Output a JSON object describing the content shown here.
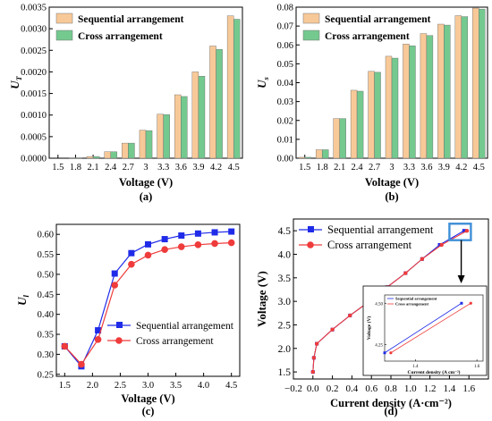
{
  "colors": {
    "sequential_bar": "#F8C998",
    "cross_bar": "#74C98F",
    "sequential_line": "#1F2BE8",
    "cross_line": "#EF3B3B",
    "zoom_box": "#3F8FD8",
    "axis": "#000000"
  },
  "chart_data": [
    {
      "panel": "(a)",
      "type": "bar",
      "ylabel": "U",
      "ylabel_sub": "T",
      "xlabel": "Voltage (V)",
      "categories": [
        "1.5",
        "1.8",
        "2.1",
        "2.4",
        "2.7",
        "3",
        "3.3",
        "3.6",
        "3.9",
        "4.2",
        "4.5"
      ],
      "ylim": [
        0,
        0.0035
      ],
      "yticks": [
        0.0,
        0.0005,
        0.001,
        0.0015,
        0.002,
        0.0025,
        0.003,
        0.0035
      ],
      "ytick_labels": [
        "0.0000",
        "0.0005",
        "0.0010",
        "0.0015",
        "0.0020",
        "0.0025",
        "0.0030",
        "0.0035"
      ],
      "series": [
        {
          "name": "Sequential arrangement",
          "values": [
            0.0,
            1e-05,
            4e-05,
            0.00015,
            0.00035,
            0.00065,
            0.00102,
            0.00147,
            0.002,
            0.0026,
            0.0033
          ]
        },
        {
          "name": "Cross arrangement",
          "values": [
            0.0,
            1e-05,
            4e-05,
            0.00015,
            0.00035,
            0.00064,
            0.00101,
            0.00143,
            0.0019,
            0.00252,
            0.00322
          ]
        }
      ],
      "legend": "top-left"
    },
    {
      "panel": "(b)",
      "type": "bar",
      "ylabel": "U",
      "ylabel_sub": "s",
      "xlabel": "Voltage (V)",
      "categories": [
        "1.5",
        "1.8",
        "2.1",
        "2.4",
        "2.7",
        "3",
        "3.3",
        "3.6",
        "3.9",
        "4.2",
        "4.5"
      ],
      "ylim": [
        0,
        0.08
      ],
      "yticks": [
        0.0,
        0.01,
        0.02,
        0.03,
        0.04,
        0.05,
        0.06,
        0.07,
        0.08
      ],
      "ytick_labels": [
        "0.00",
        "0.01",
        "0.02",
        "0.03",
        "0.04",
        "0.05",
        "0.06",
        "0.07",
        "0.08"
      ],
      "series": [
        {
          "name": "Sequential arrangement",
          "values": [
            0.0005,
            0.0045,
            0.021,
            0.036,
            0.046,
            0.054,
            0.0605,
            0.066,
            0.071,
            0.0755,
            0.0795
          ]
        },
        {
          "name": "Cross arrangement",
          "values": [
            0.0005,
            0.0045,
            0.021,
            0.0355,
            0.0455,
            0.053,
            0.0595,
            0.065,
            0.0705,
            0.075,
            0.079
          ]
        }
      ],
      "legend": "top-left"
    },
    {
      "panel": "(c)",
      "type": "line",
      "ylabel": "U",
      "ylabel_sub": "l",
      "xlabel": "Voltage (V)",
      "xlim": [
        1.35,
        4.65
      ],
      "xticks": [
        1.5,
        2.0,
        2.5,
        3.0,
        3.5,
        4.0,
        4.5
      ],
      "xtick_labels": [
        "1.5",
        "2.0",
        "2.5",
        "3.0",
        "3.5",
        "4.0",
        "4.5"
      ],
      "ylim": [
        0.245,
        0.625
      ],
      "yticks": [
        0.25,
        0.3,
        0.35,
        0.4,
        0.45,
        0.5,
        0.55,
        0.6
      ],
      "ytick_labels": [
        "0.25",
        "0.30",
        "0.35",
        "0.40",
        "0.45",
        "0.50",
        "0.55",
        "0.60"
      ],
      "series": [
        {
          "name": "Sequential arrangement",
          "marker": "square",
          "x": [
            1.5,
            1.8,
            2.1,
            2.4,
            2.7,
            3.0,
            3.3,
            3.6,
            3.9,
            4.2,
            4.5
          ],
          "y": [
            0.32,
            0.27,
            0.36,
            0.502,
            0.553,
            0.575,
            0.588,
            0.597,
            0.602,
            0.605,
            0.607
          ]
        },
        {
          "name": "Cross arrangement",
          "marker": "circle",
          "x": [
            1.5,
            1.8,
            2.1,
            2.4,
            2.7,
            3.0,
            3.3,
            3.6,
            3.9,
            4.2,
            4.5
          ],
          "y": [
            0.32,
            0.275,
            0.337,
            0.473,
            0.525,
            0.548,
            0.562,
            0.569,
            0.574,
            0.577,
            0.579
          ]
        }
      ],
      "legend": "bottom-right"
    },
    {
      "panel": "(d)",
      "type": "line",
      "ylabel": "Voltage (V)",
      "xlabel": "Current density (A·cm⁻²)",
      "xlim": [
        -0.2,
        1.8
      ],
      "xticks": [
        -0.2,
        0.0,
        0.2,
        0.4,
        0.6,
        0.8,
        1.0,
        1.2,
        1.4,
        1.6
      ],
      "xtick_labels": [
        "−0.2",
        "0.0",
        "0.2",
        "0.4",
        "0.6",
        "0.8",
        "1.0",
        "1.2",
        "1.4",
        "1.6"
      ],
      "ylim": [
        1.35,
        4.75
      ],
      "yticks": [
        1.5,
        2.0,
        2.5,
        3.0,
        3.5,
        4.0,
        4.5
      ],
      "ytick_labels": [
        "1.5",
        "2.0",
        "2.5",
        "3.0",
        "3.5",
        "4.0",
        "4.5"
      ],
      "series": [
        {
          "name": "Sequential arrangement",
          "marker": "square",
          "x": [
            0.0,
            0.01,
            0.04,
            0.2,
            0.38,
            0.58,
            0.76,
            0.95,
            1.12,
            1.3,
            1.55
          ],
          "y": [
            1.5,
            1.8,
            2.1,
            2.4,
            2.7,
            3.0,
            3.3,
            3.6,
            3.9,
            4.2,
            4.5
          ]
        },
        {
          "name": "Cross arrangement",
          "marker": "circle",
          "x": [
            0.0,
            0.01,
            0.04,
            0.2,
            0.38,
            0.58,
            0.76,
            0.95,
            1.12,
            1.32,
            1.58
          ],
          "y": [
            1.5,
            1.8,
            2.1,
            2.4,
            2.7,
            3.0,
            3.3,
            3.6,
            3.9,
            4.2,
            4.5
          ]
        }
      ],
      "legend": "top-left",
      "zoom_region": {
        "x": [
          1.4,
          1.62
        ],
        "y": [
          4.3,
          4.65
        ]
      },
      "inset": {
        "xlabel": "Current density (A cm⁻²)",
        "ylabel": "Voltage (V)",
        "xlim": [
          1.3,
          1.62
        ],
        "ylim": [
          4.15,
          4.55
        ],
        "xticks": [
          1.4,
          1.6
        ],
        "xtick_labels": [
          "1.4",
          "1.6"
        ],
        "yticks": [
          4.25,
          4.5
        ],
        "ytick_labels": [
          "4.25",
          "4.50"
        ],
        "series": [
          {
            "name": "Sequential arrangement",
            "x": [
              1.3,
              1.55
            ],
            "y": [
              4.2,
              4.5
            ]
          },
          {
            "name": "Cross arrangement",
            "x": [
              1.32,
              1.58
            ],
            "y": [
              4.2,
              4.5
            ]
          }
        ],
        "legend": "top-left"
      }
    }
  ]
}
